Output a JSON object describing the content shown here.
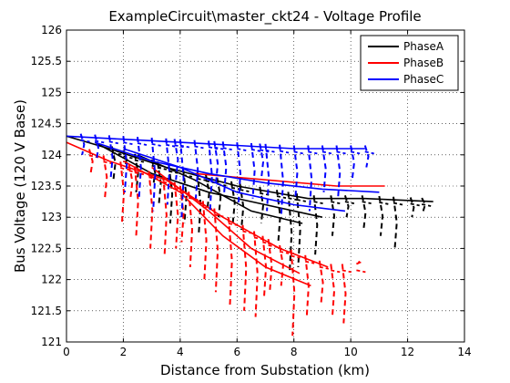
{
  "chart_data": {
    "type": "line",
    "title": "ExampleCircuit\\master_ckt24 - Voltage Profile",
    "xlabel": "Distance from Substation (km)",
    "ylabel": "Bus Voltage (120 V Base)",
    "xlim": [
      0,
      14
    ],
    "ylim": [
      121,
      126
    ],
    "xticks": [
      "0",
      "2",
      "4",
      "6",
      "8",
      "10",
      "12",
      "14"
    ],
    "yticks": [
      "121",
      "121.5",
      "122",
      "122.5",
      "123",
      "123.5",
      "124",
      "124.5",
      "125",
      "125.5",
      "126"
    ],
    "grid": true,
    "legend_position": "top-right",
    "series": [
      {
        "name": "PhaseA",
        "color": "#000000",
        "trunks": [
          [
            [
              0,
              124.3
            ],
            [
              1.5,
              124.1
            ],
            [
              3.5,
              123.8
            ],
            [
              6,
              123.5
            ],
            [
              8.5,
              123.3
            ],
            [
              10.5,
              123.3
            ],
            [
              12.9,
              123.25
            ]
          ],
          [
            [
              1,
              124.2
            ],
            [
              3,
              123.7
            ],
            [
              5,
              123.4
            ],
            [
              7,
              123.2
            ],
            [
              9,
              123.0
            ]
          ],
          [
            [
              2.5,
              124.0
            ],
            [
              4.5,
              123.6
            ],
            [
              6.5,
              123.1
            ],
            [
              8.3,
              122.9
            ]
          ]
        ],
        "drops": [
          [
            1.6,
            123.6
          ],
          [
            2.4,
            123.4
          ],
          [
            3.2,
            123.2
          ],
          [
            3.6,
            122.9
          ],
          [
            4.1,
            122.9
          ],
          [
            4.6,
            122.7
          ],
          [
            5.3,
            123.0
          ],
          [
            6.1,
            122.8
          ],
          [
            6.8,
            122.9
          ],
          [
            7.4,
            122.6
          ],
          [
            8.1,
            122.2
          ],
          [
            8.7,
            122.4
          ],
          [
            9.3,
            122.7
          ],
          [
            9.8,
            123.0
          ],
          [
            10.4,
            122.8
          ],
          [
            11.0,
            122.7
          ],
          [
            11.5,
            122.5
          ],
          [
            12.1,
            123.0
          ],
          [
            12.5,
            123.1
          ],
          [
            7.8,
            122.1
          ],
          [
            5.8,
            122.9
          ],
          [
            4.9,
            123.1
          ],
          [
            3.0,
            123.5
          ],
          [
            2.0,
            123.8
          ]
        ]
      },
      {
        "name": "PhaseB",
        "color": "#ff0000",
        "trunks": [
          [
            [
              0,
              124.2
            ],
            [
              1.5,
              123.9
            ],
            [
              3.5,
              123.6
            ],
            [
              5.5,
              123.0
            ],
            [
              7.5,
              122.5
            ],
            [
              9.2,
              122.2
            ]
          ],
          [
            [
              2,
              123.9
            ],
            [
              4,
              123.4
            ],
            [
              5.5,
              122.7
            ],
            [
              7,
              122.2
            ],
            [
              8.6,
              121.9
            ]
          ],
          [
            [
              3,
              123.8
            ],
            [
              5,
              123.1
            ],
            [
              6.5,
              122.5
            ],
            [
              8.2,
              122.1
            ]
          ],
          [
            [
              4.5,
              123.7
            ],
            [
              7,
              123.6
            ],
            [
              9.5,
              123.5
            ],
            [
              11.2,
              123.5
            ]
          ]
        ],
        "drops": [
          [
            0.8,
            123.7
          ],
          [
            1.3,
            123.3
          ],
          [
            1.9,
            122.9
          ],
          [
            2.4,
            122.7
          ],
          [
            2.9,
            122.5
          ],
          [
            3.4,
            122.4
          ],
          [
            3.8,
            122.5
          ],
          [
            4.3,
            122.2
          ],
          [
            4.8,
            122.0
          ],
          [
            5.2,
            121.8
          ],
          [
            5.7,
            121.6
          ],
          [
            6.2,
            121.5
          ],
          [
            6.6,
            121.4
          ],
          [
            7.1,
            121.8
          ],
          [
            7.5,
            121.9
          ],
          [
            7.9,
            121.1
          ],
          [
            8.4,
            121.4
          ],
          [
            8.9,
            121.6
          ],
          [
            9.3,
            121.4
          ],
          [
            9.7,
            121.3
          ],
          [
            10.2,
            122.3
          ],
          [
            6.9,
            121.7
          ],
          [
            4.0,
            122.6
          ],
          [
            2.2,
            123.3
          ]
        ]
      },
      {
        "name": "PhaseC",
        "color": "#0000ff",
        "trunks": [
          [
            [
              0,
              124.3
            ],
            [
              2,
              124.25
            ],
            [
              4,
              124.2
            ],
            [
              6,
              124.15
            ],
            [
              8,
              124.1
            ],
            [
              10.5,
              124.1
            ]
          ],
          [
            [
              1,
              124.2
            ],
            [
              3,
              123.9
            ],
            [
              5,
              123.7
            ],
            [
              7,
              123.55
            ],
            [
              9,
              123.45
            ],
            [
              11,
              123.4
            ]
          ],
          [
            [
              2,
              124.1
            ],
            [
              4,
              123.8
            ],
            [
              6,
              123.4
            ],
            [
              8,
              123.2
            ],
            [
              9.8,
              123.1
            ]
          ]
        ],
        "drops": [
          [
            0.5,
            124.0
          ],
          [
            1.0,
            123.9
          ],
          [
            1.5,
            123.6
          ],
          [
            2.0,
            123.4
          ],
          [
            2.5,
            123.3
          ],
          [
            3.0,
            123.1
          ],
          [
            3.5,
            123.2
          ],
          [
            4.0,
            123.0
          ],
          [
            4.5,
            123.3
          ],
          [
            5.0,
            123.1
          ],
          [
            5.5,
            123.4
          ],
          [
            6.0,
            123.2
          ],
          [
            6.5,
            123.3
          ],
          [
            7.0,
            123.1
          ],
          [
            7.5,
            123.0
          ],
          [
            8.0,
            123.3
          ],
          [
            8.5,
            123.1
          ],
          [
            9.0,
            123.4
          ],
          [
            9.5,
            123.3
          ],
          [
            10.0,
            123.6
          ],
          [
            10.5,
            123.8
          ],
          [
            6.8,
            123.6
          ],
          [
            5.2,
            123.5
          ],
          [
            3.8,
            123.6
          ]
        ]
      }
    ]
  }
}
